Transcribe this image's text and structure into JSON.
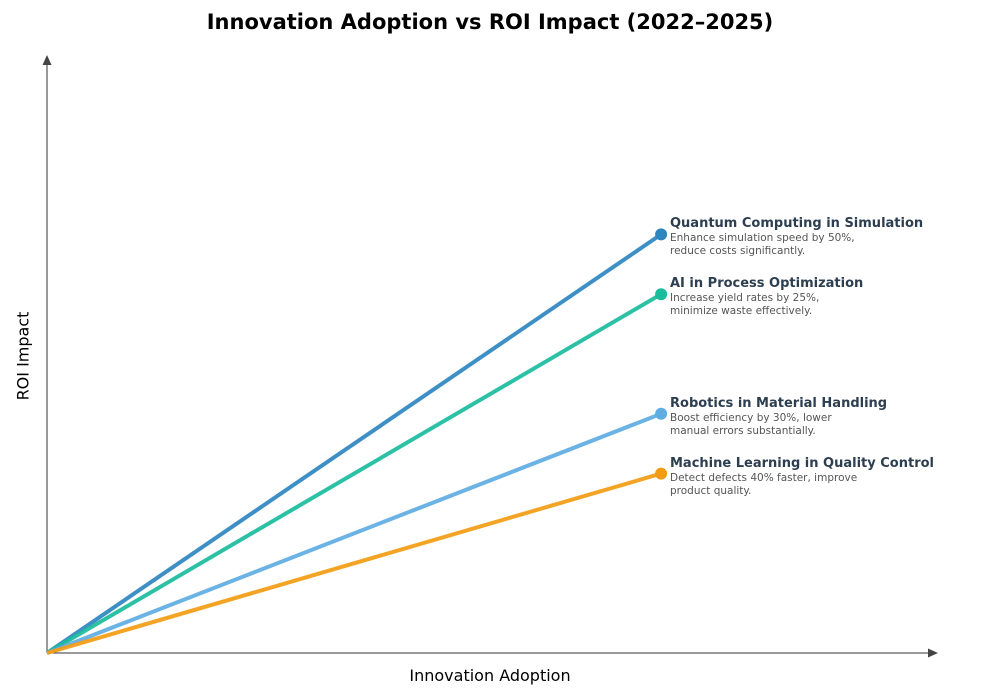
{
  "chart_data": {
    "type": "line",
    "title": "Innovation Adoption vs ROI Impact (2022–2025)",
    "xlabel": "Innovation Adoption",
    "ylabel": "ROI Impact",
    "xlim": [
      0,
      1
    ],
    "ylim": [
      0,
      1
    ],
    "grid": false,
    "legend": "inline labels at line ends (right)",
    "series": [
      {
        "name": "Quantum Computing in Simulation",
        "description": "Enhance simulation speed by 50%,\nreduce costs significantly.",
        "color": "#2e86c1",
        "x": [
          0,
          0.69
        ],
        "y": [
          0,
          0.7
        ]
      },
      {
        "name": "AI in Process Optimization",
        "description": "Increase yield rates by 25%,\nminimize waste effectively.",
        "color": "#1abc9c",
        "x": [
          0,
          0.69
        ],
        "y": [
          0,
          0.6
        ]
      },
      {
        "name": "Robotics in Material Handling",
        "description": "Boost efficiency by 30%, lower\nmanual errors substantially.",
        "color": "#5dade2",
        "x": [
          0,
          0.69
        ],
        "y": [
          0,
          0.4
        ]
      },
      {
        "name": "Machine Learning in Quality Control",
        "description": "Detect defects 40% faster, improve\nproduct quality.",
        "color": "#f39c12",
        "x": [
          0,
          0.69
        ],
        "y": [
          0,
          0.3
        ]
      }
    ]
  }
}
